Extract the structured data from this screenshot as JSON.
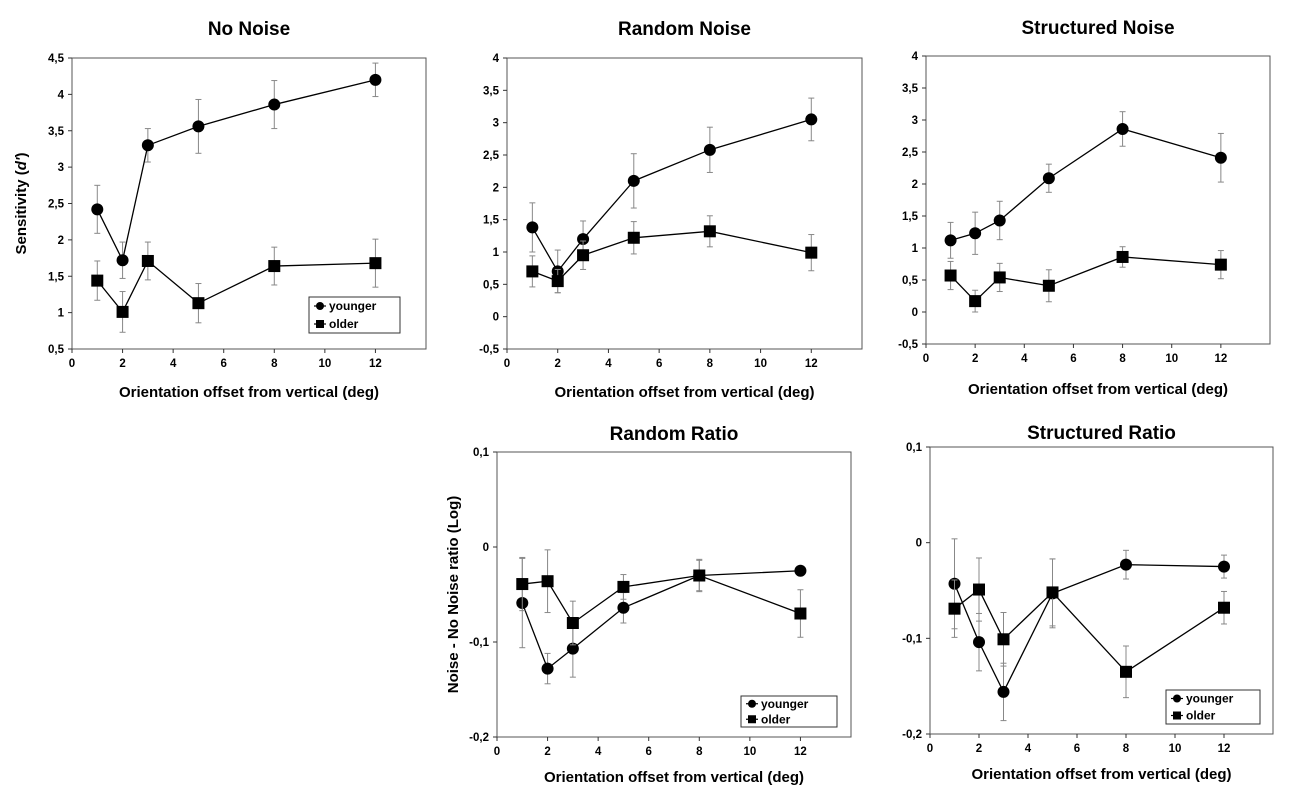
{
  "chart_data": [
    {
      "id": "no-noise",
      "type": "line",
      "title": "No Noise",
      "xlabel": "Orientation offset from vertical (deg)",
      "ylabel": "Sensitivity (d')",
      "xlim": [
        0,
        14
      ],
      "ylim": [
        0.5,
        4.5
      ],
      "xticks": [
        0,
        2,
        4,
        6,
        8,
        10,
        12
      ],
      "xtick_labels": [
        "0",
        "2",
        "4",
        "6",
        "8",
        "10",
        "12"
      ],
      "yticks": [
        0.5,
        1,
        1.5,
        2,
        2.5,
        3,
        3.5,
        4,
        4.5
      ],
      "ytick_labels": [
        "0,5",
        "1",
        "1,5",
        "2",
        "2,5",
        "3",
        "3,5",
        "4",
        "4,5"
      ],
      "grid": false,
      "legend": "bottom-right",
      "x": [
        1,
        2,
        3,
        5,
        8,
        12
      ],
      "series": [
        {
          "name": "younger",
          "marker": "circle",
          "values": [
            2.42,
            1.72,
            3.3,
            3.56,
            3.86,
            4.2
          ],
          "errors": [
            0.33,
            0.25,
            0.23,
            0.37,
            0.33,
            0.23
          ]
        },
        {
          "name": "older",
          "marker": "square",
          "values": [
            1.44,
            1.01,
            1.71,
            1.13,
            1.64,
            1.68
          ],
          "errors": [
            0.27,
            0.28,
            0.26,
            0.27,
            0.26,
            0.33
          ]
        }
      ]
    },
    {
      "id": "random-noise",
      "type": "line",
      "title": "Random Noise",
      "xlabel": "Orientation offset from vertical (deg)",
      "ylabel": "",
      "xlim": [
        0,
        14
      ],
      "ylim": [
        -0.5,
        4
      ],
      "xticks": [
        0,
        2,
        4,
        6,
        8,
        10,
        12
      ],
      "xtick_labels": [
        "0",
        "2",
        "4",
        "6",
        "8",
        "10",
        "12"
      ],
      "yticks": [
        -0.5,
        0,
        0.5,
        1,
        1.5,
        2,
        2.5,
        3,
        3.5,
        4
      ],
      "ytick_labels": [
        "-0,5",
        "0",
        "0,5",
        "1",
        "1,5",
        "2",
        "2,5",
        "3",
        "3,5",
        "4"
      ],
      "grid": false,
      "legend": "none",
      "x": [
        1,
        2,
        3,
        5,
        8,
        12
      ],
      "series": [
        {
          "name": "younger",
          "marker": "circle",
          "values": [
            1.38,
            0.7,
            1.2,
            2.1,
            2.58,
            3.05
          ],
          "errors": [
            0.38,
            0.33,
            0.28,
            0.42,
            0.35,
            0.33
          ]
        },
        {
          "name": "older",
          "marker": "square",
          "values": [
            0.7,
            0.55,
            0.95,
            1.22,
            1.32,
            0.99
          ],
          "errors": [
            0.24,
            0.18,
            0.22,
            0.25,
            0.24,
            0.28
          ]
        }
      ]
    },
    {
      "id": "structured-noise",
      "type": "line",
      "title": "Structured Noise",
      "xlabel": "Orientation offset from vertical (deg)",
      "ylabel": "",
      "xlim": [
        0,
        14
      ],
      "ylim": [
        -0.5,
        4
      ],
      "xticks": [
        0,
        2,
        4,
        6,
        8,
        10,
        12
      ],
      "xtick_labels": [
        "0",
        "2",
        "4",
        "6",
        "8",
        "10",
        "12"
      ],
      "yticks": [
        -0.5,
        0,
        0.5,
        1,
        1.5,
        2,
        2.5,
        3,
        3.5,
        4
      ],
      "ytick_labels": [
        "-0,5",
        "0",
        "0,5",
        "1",
        "1,5",
        "2",
        "2,5",
        "3",
        "3,5",
        "4"
      ],
      "grid": false,
      "legend": "none",
      "x": [
        1,
        2,
        3,
        5,
        8,
        12
      ],
      "series": [
        {
          "name": "younger",
          "marker": "circle",
          "values": [
            1.12,
            1.23,
            1.43,
            2.09,
            2.86,
            2.41
          ],
          "errors": [
            0.28,
            0.33,
            0.3,
            0.22,
            0.27,
            0.38
          ]
        },
        {
          "name": "older",
          "marker": "square",
          "values": [
            0.57,
            0.17,
            0.54,
            0.41,
            0.86,
            0.74
          ],
          "errors": [
            0.22,
            0.17,
            0.22,
            0.25,
            0.16,
            0.22
          ]
        }
      ]
    },
    {
      "id": "random-ratio",
      "type": "line",
      "title": "Random Ratio",
      "xlabel": "Orientation offset from vertical (deg)",
      "ylabel": "Noise - No Noise ratio (Log)",
      "xlim": [
        0,
        14
      ],
      "ylim": [
        -0.2,
        0.1
      ],
      "xticks": [
        0,
        2,
        4,
        6,
        8,
        10,
        12
      ],
      "xtick_labels": [
        "0",
        "2",
        "4",
        "6",
        "8",
        "10",
        "12"
      ],
      "yticks": [
        -0.2,
        -0.1,
        0,
        0.1
      ],
      "ytick_labels": [
        "-0,2",
        "-0,1",
        "0",
        "0,1"
      ],
      "grid": false,
      "legend": "bottom-right",
      "x": [
        1,
        2,
        3,
        5,
        8,
        12
      ],
      "series": [
        {
          "name": "younger",
          "marker": "circle",
          "values": [
            -0.059,
            -0.128,
            -0.107,
            -0.064,
            -0.03,
            -0.025
          ],
          "errors": [
            0.047,
            0.016,
            0.03,
            0.016,
            0.016,
            0.0
          ]
        },
        {
          "name": "older",
          "marker": "square",
          "values": [
            -0.039,
            -0.036,
            -0.08,
            -0.042,
            -0.03,
            -0.07
          ],
          "errors": [
            0.028,
            0.033,
            0.023,
            0.013,
            0.017,
            0.025
          ]
        }
      ]
    },
    {
      "id": "structured-ratio",
      "type": "line",
      "title": "Structured Ratio",
      "xlabel": "Orientation offset from vertical (deg)",
      "ylabel": "",
      "xlim": [
        0,
        14
      ],
      "ylim": [
        -0.2,
        0.1
      ],
      "xticks": [
        0,
        2,
        4,
        6,
        8,
        10,
        12
      ],
      "xtick_labels": [
        "0",
        "2",
        "4",
        "6",
        "8",
        "10",
        "12"
      ],
      "yticks": [
        -0.2,
        -0.1,
        0,
        0.1
      ],
      "ytick_labels": [
        "-0,2",
        "-0,1",
        "0",
        "0,1"
      ],
      "grid": false,
      "legend": "bottom-right",
      "x": [
        1,
        2,
        3,
        5,
        8,
        12
      ],
      "series": [
        {
          "name": "younger",
          "marker": "circle",
          "values": [
            -0.043,
            -0.104,
            -0.156,
            -0.053,
            -0.023,
            -0.025
          ],
          "errors": [
            0.047,
            0.03,
            0.03,
            0.036,
            0.015,
            0.012
          ]
        },
        {
          "name": "older",
          "marker": "square",
          "values": [
            -0.069,
            -0.049,
            -0.101,
            -0.052,
            -0.135,
            -0.068
          ],
          "errors": [
            0.03,
            0.033,
            0.028,
            0.035,
            0.027,
            0.017
          ]
        }
      ]
    }
  ]
}
